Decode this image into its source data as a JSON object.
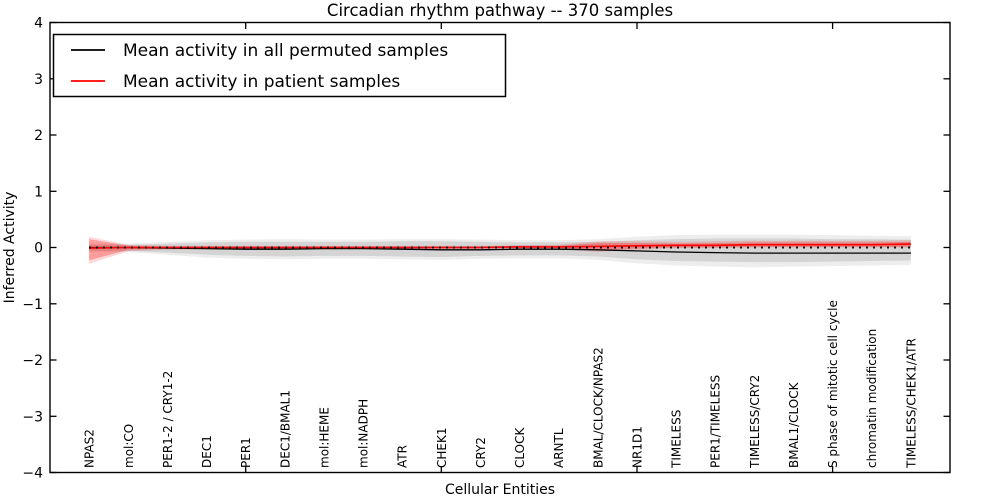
{
  "legend": {
    "entries": [
      {
        "label": "Mean activity in all permuted samples",
        "color": "#000000"
      },
      {
        "label": "Mean activity in patient samples",
        "color": "#ff0000"
      }
    ]
  },
  "colors": {
    "frame": "#000000",
    "background": "#ffffff",
    "permuted_line": "#000000",
    "patient_line": "#ff0000",
    "permuted_band": "#000000",
    "patient_band": "#ff0000"
  },
  "chart_data": {
    "type": "line",
    "title": "Circadian rhythm pathway -- 370 samples",
    "xlabel": "Cellular Entities",
    "ylabel": "Inferred Activity",
    "ylim": [
      -4,
      4
    ],
    "xlim": [
      0,
      23
    ],
    "grid": false,
    "legend_position": "upper left",
    "ytick_values": [
      -4,
      -3,
      -2,
      -1,
      0,
      1,
      2,
      3,
      4
    ],
    "ytick_labels": [
      "−4",
      "−3",
      "−2",
      "−1",
      "0",
      "1",
      "2",
      "3",
      "4"
    ],
    "x_major_tick_values": [
      5,
      10,
      15,
      20
    ],
    "x": [
      1,
      2,
      3,
      4,
      5,
      6,
      7,
      8,
      9,
      10,
      11,
      12,
      13,
      14,
      15,
      16,
      17,
      18,
      19,
      20,
      21,
      22
    ],
    "categories": [
      "NPAS2",
      "mol:CO",
      "PER1-2 / CRY1-2",
      "DEC1",
      "PER1",
      "DEC1/BMAL1",
      "mol:HEME",
      "mol:NADPH",
      "ATR",
      "CHEK1",
      "CRY2",
      "CLOCK",
      "ARNTL",
      "BMAL/CLOCK/NPAS2",
      "NR1D1",
      "TIMELESS",
      "PER1/TIMELESS",
      "TIMELESS/CRY2",
      "BMAL1/CLOCK",
      "S phase of mitotic cell cycle",
      "chromatin modification",
      "TIMELESS/CHEK1/ATR"
    ],
    "series": [
      {
        "name": "Mean activity in all permuted samples",
        "color": "#000000",
        "line_style": "solid",
        "values": [
          0.0,
          0.0,
          -0.01,
          -0.02,
          -0.03,
          -0.03,
          -0.02,
          -0.02,
          -0.03,
          -0.04,
          -0.04,
          -0.03,
          -0.03,
          -0.04,
          -0.06,
          -0.08,
          -0.09,
          -0.1,
          -0.1,
          -0.1,
          -0.1,
          -0.1
        ],
        "band_inner_upper": [
          0.05,
          0.05,
          0.07,
          0.09,
          0.1,
          0.1,
          0.1,
          0.1,
          0.11,
          0.11,
          0.1,
          0.09,
          0.09,
          0.1,
          0.13,
          0.15,
          0.16,
          0.16,
          0.16,
          0.15,
          0.15,
          0.14
        ],
        "band_inner_lower": [
          -0.06,
          -0.06,
          -0.09,
          -0.13,
          -0.15,
          -0.16,
          -0.15,
          -0.15,
          -0.16,
          -0.17,
          -0.15,
          -0.14,
          -0.14,
          -0.16,
          -0.21,
          -0.24,
          -0.25,
          -0.26,
          -0.26,
          -0.25,
          -0.24,
          -0.23
        ],
        "band_outer_upper": [
          0.07,
          0.07,
          0.1,
          0.13,
          0.14,
          0.15,
          0.14,
          0.14,
          0.15,
          0.15,
          0.14,
          0.13,
          0.13,
          0.15,
          0.19,
          0.22,
          0.23,
          0.23,
          0.23,
          0.22,
          0.21,
          0.2
        ],
        "band_outer_lower": [
          -0.08,
          -0.08,
          -0.13,
          -0.18,
          -0.2,
          -0.21,
          -0.2,
          -0.2,
          -0.21,
          -0.22,
          -0.2,
          -0.19,
          -0.19,
          -0.22,
          -0.28,
          -0.32,
          -0.34,
          -0.35,
          -0.34,
          -0.33,
          -0.32,
          -0.31
        ]
      },
      {
        "name": "Mean activity in patient samples",
        "color": "#ff0000",
        "line_style": "solid",
        "values": [
          -0.01,
          0.0,
          0.0,
          0.0,
          0.0,
          0.0,
          0.0,
          0.0,
          0.0,
          0.0,
          0.0,
          0.01,
          0.01,
          0.02,
          0.03,
          0.04,
          0.04,
          0.05,
          0.05,
          0.05,
          0.05,
          0.06
        ],
        "band_inner_upper": [
          0.15,
          0.03,
          0.02,
          0.02,
          0.02,
          0.02,
          0.02,
          0.02,
          0.02,
          0.02,
          0.02,
          0.03,
          0.03,
          0.08,
          0.08,
          0.07,
          0.08,
          0.09,
          0.09,
          0.09,
          0.09,
          0.1
        ],
        "band_inner_lower": [
          -0.23,
          -0.04,
          -0.02,
          -0.02,
          -0.02,
          -0.02,
          -0.02,
          -0.02,
          -0.02,
          -0.02,
          -0.02,
          -0.01,
          -0.01,
          -0.05,
          -0.02,
          0.0,
          0.0,
          0.01,
          0.01,
          0.01,
          0.01,
          0.01
        ],
        "band_outer_upper": [
          0.19,
          0.05,
          0.03,
          0.03,
          0.03,
          0.03,
          0.03,
          0.03,
          0.03,
          0.03,
          0.03,
          0.04,
          0.05,
          0.11,
          0.11,
          0.1,
          0.11,
          0.12,
          0.12,
          0.12,
          0.12,
          0.13
        ],
        "band_outer_lower": [
          -0.29,
          -0.07,
          -0.04,
          -0.03,
          -0.03,
          -0.03,
          -0.03,
          -0.03,
          -0.03,
          -0.03,
          -0.03,
          -0.02,
          -0.02,
          -0.08,
          -0.04,
          -0.01,
          -0.01,
          0.0,
          0.0,
          0.0,
          0.0,
          0.0
        ]
      },
      {
        "name": "zero reference",
        "color": "#000000",
        "line_style": "dotted",
        "values": [
          0,
          0,
          0,
          0,
          0,
          0,
          0,
          0,
          0,
          0,
          0,
          0,
          0,
          0,
          0,
          0,
          0,
          0,
          0,
          0,
          0,
          0
        ]
      }
    ]
  }
}
